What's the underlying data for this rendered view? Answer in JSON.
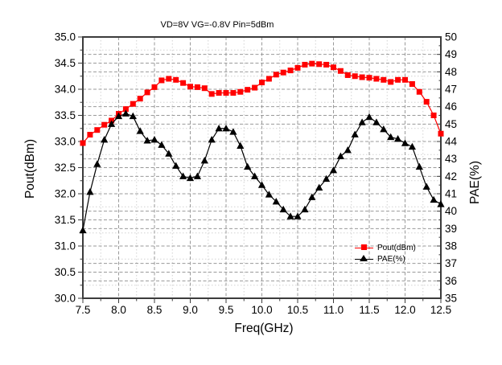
{
  "colors": {
    "pout": "#ff0000",
    "pae": "#000000",
    "frame": "#3c3c3c",
    "grid_major": "#9a9a9a",
    "grid_minor": "#d2d2d2",
    "text": "#000000"
  },
  "chart_data": {
    "type": "line",
    "title": "VD=8V VG=-0.8V Pin=5dBm",
    "xlabel": "Freq(GHz)",
    "ylabel_left": "Pout(dBm)",
    "ylabel_right": "PAE(%)",
    "x_range": [
      7.5,
      12.5
    ],
    "y_left_range": [
      30.0,
      35.0
    ],
    "y_right_range": [
      35,
      50
    ],
    "x_major_step": 0.5,
    "x_minor_step": 0.25,
    "y_left_major_step": 0.5,
    "y_left_minor_step": 0.25,
    "y_right_major_step": 1,
    "grid": true,
    "legend_position": "inside lower-right",
    "x_ticks": [
      "7.5",
      "8.0",
      "8.5",
      "9.0",
      "9.5",
      "10.0",
      "10.5",
      "11.0",
      "11.5",
      "12.0",
      "12.5"
    ],
    "y_left_ticks": [
      "30.0",
      "30.5",
      "31.0",
      "31.5",
      "32.0",
      "32.5",
      "33.0",
      "33.5",
      "34.0",
      "34.5",
      "35.0"
    ],
    "y_right_ticks": [
      "35",
      "36",
      "37",
      "38",
      "39",
      "40",
      "41",
      "42",
      "43",
      "44",
      "45",
      "46",
      "47",
      "48",
      "49",
      "50"
    ],
    "x": [
      7.5,
      7.6,
      7.7,
      7.8,
      7.9,
      8.0,
      8.1,
      8.2,
      8.3,
      8.4,
      8.5,
      8.6,
      8.7,
      8.8,
      8.9,
      9.0,
      9.1,
      9.2,
      9.3,
      9.4,
      9.5,
      9.6,
      9.7,
      9.8,
      9.9,
      10.0,
      10.1,
      10.2,
      10.3,
      10.4,
      10.5,
      10.6,
      10.7,
      10.8,
      10.9,
      11.0,
      11.1,
      11.2,
      11.3,
      11.4,
      11.5,
      11.6,
      11.7,
      11.8,
      11.9,
      12.0,
      12.1,
      12.2,
      12.3,
      12.4,
      12.5
    ],
    "series": [
      {
        "name": "Pout(dBm)",
        "axis": "left",
        "color": "#ff0000",
        "marker": "square",
        "values": [
          32.97,
          33.13,
          33.22,
          33.32,
          33.4,
          33.53,
          33.62,
          33.72,
          33.82,
          33.94,
          34.04,
          34.17,
          34.2,
          34.18,
          34.12,
          34.05,
          34.04,
          34.02,
          33.91,
          33.93,
          33.93,
          33.93,
          33.95,
          33.99,
          34.03,
          34.13,
          34.2,
          34.28,
          34.32,
          34.36,
          34.41,
          34.47,
          34.49,
          34.48,
          34.47,
          34.42,
          34.35,
          34.27,
          34.25,
          34.23,
          34.22,
          34.2,
          34.18,
          34.14,
          34.18,
          34.18,
          34.1,
          33.95,
          33.76,
          33.5,
          33.15
        ]
      },
      {
        "name": "PAE(%)",
        "axis": "right",
        "color": "#000000",
        "marker": "triangle",
        "values": [
          38.9,
          41.1,
          42.7,
          44.1,
          45.0,
          45.45,
          45.6,
          45.45,
          44.6,
          44.05,
          44.1,
          43.8,
          43.3,
          42.6,
          42.0,
          41.9,
          42.0,
          42.9,
          44.1,
          44.75,
          44.75,
          44.55,
          43.75,
          42.55,
          42.0,
          41.5,
          40.95,
          40.55,
          40.1,
          39.7,
          39.7,
          40.1,
          40.8,
          41.35,
          41.85,
          42.35,
          43.15,
          43.5,
          44.4,
          45.1,
          45.4,
          45.1,
          44.7,
          44.25,
          44.15,
          43.9,
          43.7,
          42.55,
          41.4,
          40.65,
          40.4
        ]
      }
    ]
  }
}
